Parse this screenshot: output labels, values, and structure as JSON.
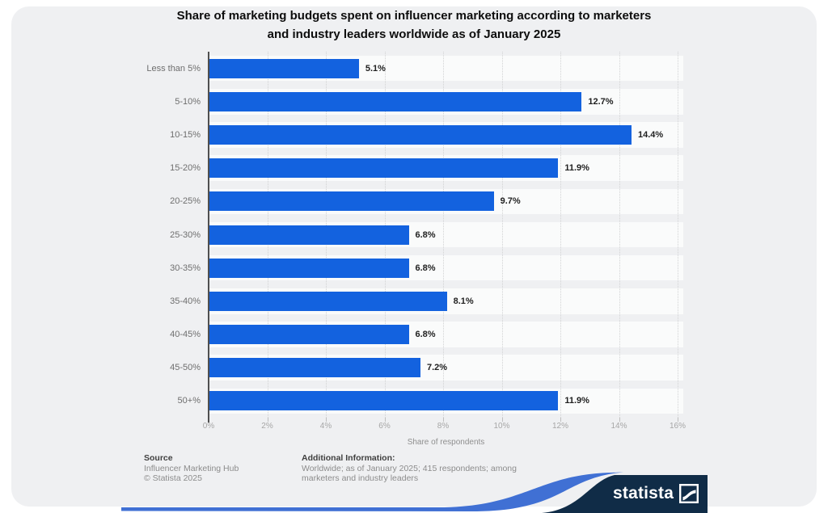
{
  "title": {
    "line1": "Share of marketing budgets spent on influencer marketing according to marketers",
    "line2": "and industry leaders worldwide as of January 2025"
  },
  "chart_data": {
    "type": "bar",
    "orientation": "horizontal",
    "title": "Share of marketing budgets spent on influencer marketing according to marketers and industry leaders worldwide as of January 2025",
    "categories": [
      "Less than 5%",
      "5-10%",
      "10-15%",
      "15-20%",
      "20-25%",
      "25-30%",
      "30-35%",
      "35-40%",
      "40-45%",
      "45-50%",
      "50+%"
    ],
    "values": [
      5.1,
      12.7,
      14.4,
      11.9,
      9.7,
      6.8,
      6.8,
      8.1,
      6.8,
      7.2,
      11.9
    ],
    "value_labels": [
      "5.1%",
      "12.7%",
      "14.4%",
      "11.9%",
      "9.7%",
      "6.8%",
      "6.8%",
      "8.1%",
      "6.8%",
      "7.2%",
      "11.9%"
    ],
    "xlabel": "Share of respondents",
    "ylabel": "",
    "xlim": [
      0,
      16
    ],
    "x_ticks": [
      "0%",
      "2%",
      "4%",
      "6%",
      "8%",
      "10%",
      "12%",
      "14%",
      "16%"
    ],
    "grid": "dotted-vertical",
    "legend": "none",
    "bar_color": "#1362df"
  },
  "footer": {
    "source_heading": "Source",
    "source_name": "Influencer Marketing Hub",
    "copyright": "© Statista 2025",
    "additional_info_heading": "Additional Information:",
    "additional_info_text": "Worldwide; as of January 2025; 415 respondents; among marketers and industry leaders"
  },
  "branding": {
    "logo_text": "statista",
    "navy_color": "#102c47",
    "swoosh_color": "#4070d4"
  }
}
